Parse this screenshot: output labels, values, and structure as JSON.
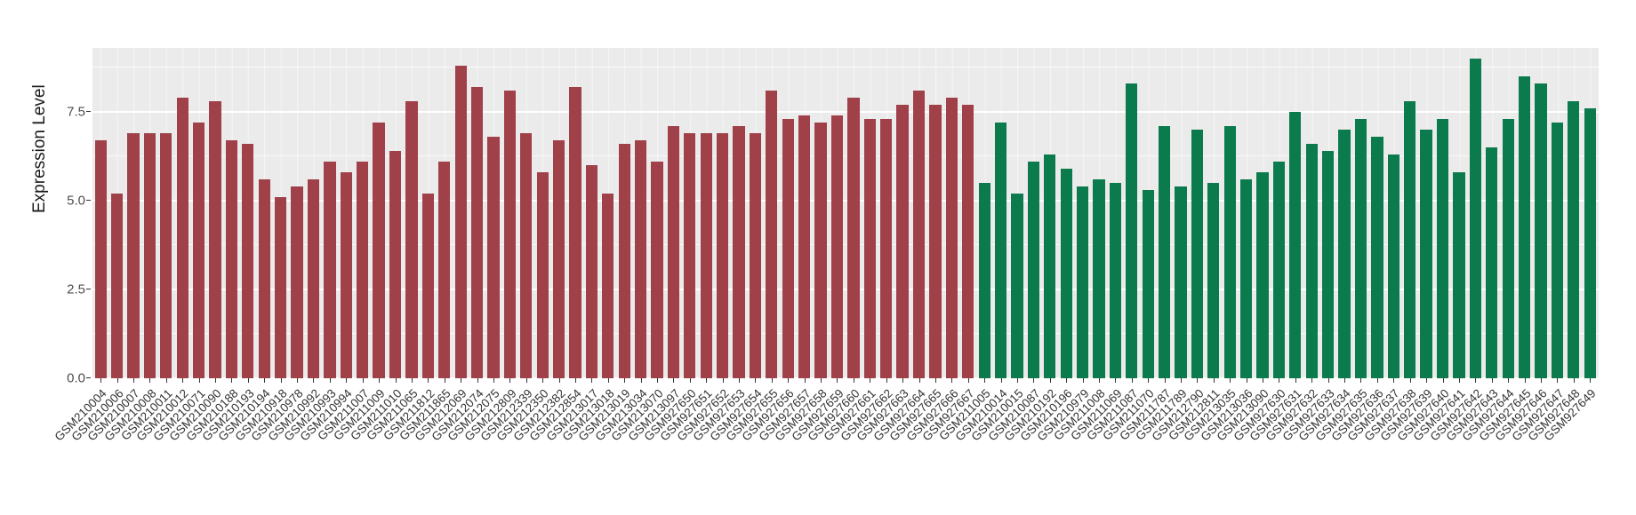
{
  "chart_data": {
    "type": "bar",
    "title": "",
    "xlabel": "",
    "ylabel": "Expression Level",
    "ylim": [
      0,
      9.3
    ],
    "grid": true,
    "legend": false,
    "panel_background": "#EBEBEB",
    "gridline_color": "#FFFFFF",
    "yticks": {
      "values": [
        0,
        2.5,
        5,
        7.5
      ],
      "labels": [
        "0.0",
        "2.5",
        "5.0",
        "7.5"
      ]
    },
    "groups": [
      {
        "name": "left-group",
        "color": "#A04049",
        "labels": [
          "GSM210004",
          "GSM210006",
          "GSM210007",
          "GSM210008",
          "GSM210011",
          "GSM210012",
          "GSM210071",
          "GSM210090",
          "GSM210188",
          "GSM210193",
          "GSM210194",
          "GSM210918",
          "GSM210978",
          "GSM210992",
          "GSM210993",
          "GSM210994",
          "GSM211007",
          "GSM211009",
          "GSM211010",
          "GSM211065",
          "GSM211812",
          "GSM211865",
          "GSM212069",
          "GSM212074",
          "GSM212075",
          "GSM212809",
          "GSM212339",
          "GSM212350",
          "GSM212382",
          "GSM212854",
          "GSM213017",
          "GSM213018",
          "GSM213019",
          "GSM213034",
          "GSM213070",
          "GSM213097",
          "GSM927650",
          "GSM927651",
          "GSM927652",
          "GSM927653",
          "GSM927654",
          "GSM927655",
          "GSM927656",
          "GSM927657",
          "GSM927658",
          "GSM927659",
          "GSM927660",
          "GSM927661",
          "GSM927662",
          "GSM927663",
          "GSM927664",
          "GSM927665",
          "GSM927666",
          "GSM927667"
        ],
        "values": [
          6.7,
          5.2,
          6.9,
          6.9,
          6.9,
          7.9,
          7.2,
          7.8,
          6.7,
          6.6,
          5.6,
          5.1,
          5.4,
          5.6,
          6.1,
          5.8,
          6.1,
          7.2,
          6.4,
          7.8,
          5.2,
          6.1,
          8.8,
          8.2,
          6.8,
          8.1,
          6.9,
          5.8,
          6.7,
          8.2,
          6.0,
          5.2,
          6.6,
          6.7,
          6.1,
          7.1,
          6.9,
          6.9,
          6.9,
          7.1,
          6.9,
          8.1,
          7.3,
          7.4,
          7.2,
          7.4,
          7.9,
          7.3,
          7.3,
          7.7,
          8.1,
          7.7,
          7.9,
          7.7
        ]
      },
      {
        "name": "right-group",
        "color": "#0B7B4E",
        "labels": [
          "GSM211005",
          "GSM210014",
          "GSM210015",
          "GSM210087",
          "GSM210192",
          "GSM210196",
          "GSM210979",
          "GSM211008",
          "GSM211069",
          "GSM211087",
          "GSM211070",
          "GSM211787",
          "GSM211789",
          "GSM212790",
          "GSM212811",
          "GSM213035",
          "GSM213036",
          "GSM213090",
          "GSM927630",
          "GSM927631",
          "GSM927632",
          "GSM927633",
          "GSM927634",
          "GSM927635",
          "GSM927636",
          "GSM927637",
          "GSM927638",
          "GSM927639",
          "GSM927640",
          "GSM927641",
          "GSM927642",
          "GSM927643",
          "GSM927644",
          "GSM927645",
          "GSM927646",
          "GSM927647",
          "GSM927648",
          "GSM927649"
        ],
        "values": [
          5.5,
          7.2,
          5.2,
          6.1,
          6.3,
          5.9,
          5.4,
          5.6,
          5.5,
          8.3,
          5.3,
          7.1,
          5.4,
          7.0,
          5.5,
          7.1,
          5.6,
          5.8,
          6.1,
          7.5,
          6.6,
          6.4,
          7.0,
          7.3,
          6.8,
          6.3,
          7.8,
          7.0,
          7.3,
          5.8,
          9.0,
          6.5,
          7.3,
          8.5,
          8.3,
          7.2,
          7.8,
          7.6
        ]
      }
    ]
  }
}
